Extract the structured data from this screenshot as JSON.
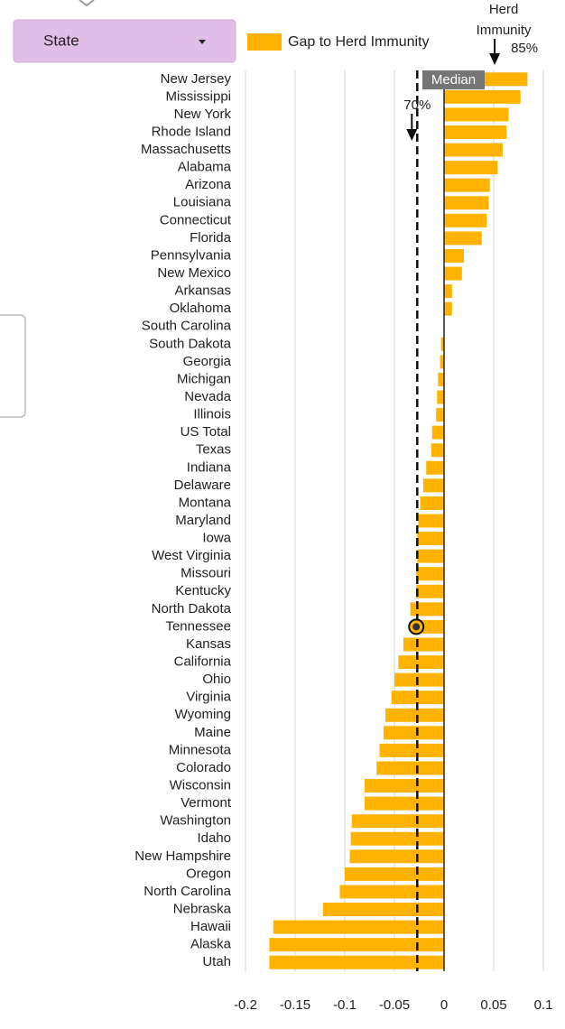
{
  "dropdown": {
    "label": "State"
  },
  "chart_data": {
    "type": "hbar",
    "series": [
      {
        "name": "Gap to Herd Immunity",
        "color": "#ffb300"
      }
    ],
    "categories": [
      "New Jersey",
      "Mississippi",
      "New York",
      "Rhode Island",
      "Massachusetts",
      "Alabama",
      "Arizona",
      "Louisiana",
      "Connecticut",
      "Florida",
      "Pennsylvania",
      "New Mexico",
      "Arkansas",
      "Oklahoma",
      "South Carolina",
      "South Dakota",
      "Georgia",
      "Michigan",
      "Nevada",
      "Illinois",
      "US Total",
      "Texas",
      "Indiana",
      "Delaware",
      "Montana",
      "Maryland",
      "Iowa",
      "West Virginia",
      "Missouri",
      "Kentucky",
      "North Dakota",
      "Tennessee",
      "Kansas",
      "California",
      "Ohio",
      "Virginia",
      "Wyoming",
      "Maine",
      "Minnesota",
      "Colorado",
      "Wisconsin",
      "Vermont",
      "Washington",
      "Idaho",
      "New Hampshire",
      "Oregon",
      "North Carolina",
      "Nebraska",
      "Hawaii",
      "Alaska",
      "Utah"
    ],
    "values": [
      0.084,
      0.077,
      0.065,
      0.063,
      0.059,
      0.054,
      0.046,
      0.045,
      0.043,
      0.038,
      0.02,
      0.018,
      0.008,
      0.008,
      0.0,
      -0.003,
      -0.004,
      -0.006,
      -0.007,
      -0.008,
      -0.012,
      -0.013,
      -0.018,
      -0.021,
      -0.024,
      -0.026,
      -0.027,
      -0.027,
      -0.028,
      -0.028,
      -0.034,
      -0.028,
      -0.041,
      -0.046,
      -0.05,
      -0.053,
      -0.059,
      -0.061,
      -0.065,
      -0.068,
      -0.08,
      -0.08,
      -0.093,
      -0.094,
      -0.095,
      -0.1,
      -0.105,
      -0.122,
      -0.172,
      -0.176,
      -0.176
    ],
    "highlight": "Tennessee",
    "xlim": [
      -0.2,
      0.1
    ],
    "xticks": [
      -0.2,
      -0.15,
      -0.1,
      -0.05,
      0,
      0.05,
      0.1
    ],
    "grid": true,
    "annotations": [
      {
        "text": "Median",
        "x": 0
      },
      {
        "text": "70%",
        "x": -0.027
      },
      {
        "text": "Herd Immunity",
        "x": 0.051
      },
      {
        "text": "85%",
        "x": 0.051
      }
    ]
  }
}
